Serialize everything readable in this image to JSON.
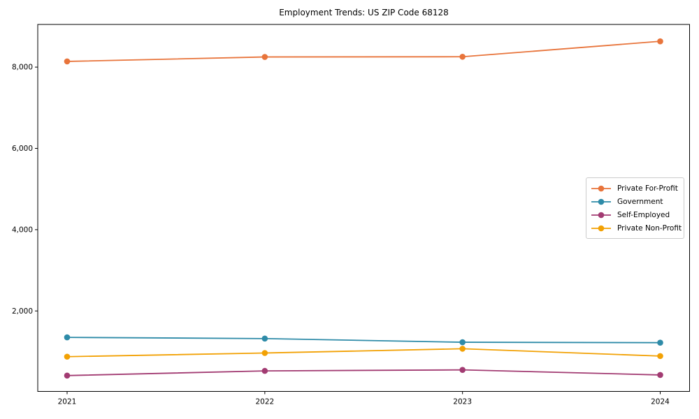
{
  "title": "Employment Trends: US ZIP Code 68128",
  "colors": {
    "private_for_profit": "#E8743B",
    "government": "#2E8BA8",
    "self_employed": "#A23B72",
    "private_non_profit": "#F2A104",
    "axis": "#000000",
    "legend_border": "#cccccc",
    "background": "#ffffff"
  },
  "chart_data": {
    "type": "line",
    "title": "Employment Trends: US ZIP Code 68128",
    "x": [
      2021,
      2022,
      2023,
      2024
    ],
    "x_tick_labels": [
      "2021",
      "2022",
      "2023",
      "2024"
    ],
    "y_ticks": [
      2000,
      4000,
      6000,
      8000
    ],
    "y_tick_labels": [
      "2,000",
      "4,000",
      "6,000",
      "8,000"
    ],
    "ylim": [
      20,
      9050
    ],
    "grid": false,
    "legend_position": "center right",
    "marker": "circle",
    "series": [
      {
        "name": "Private For-Profit",
        "color": "#E8743B",
        "values": [
          8140,
          8250,
          8255,
          8635
        ]
      },
      {
        "name": "Government",
        "color": "#2E8BA8",
        "values": [
          1350,
          1320,
          1230,
          1220
        ]
      },
      {
        "name": "Self-Employed",
        "color": "#A23B72",
        "values": [
          410,
          525,
          550,
          425
        ]
      },
      {
        "name": "Private Non-Profit",
        "color": "#F2A104",
        "values": [
          875,
          965,
          1070,
          890
        ]
      }
    ]
  }
}
